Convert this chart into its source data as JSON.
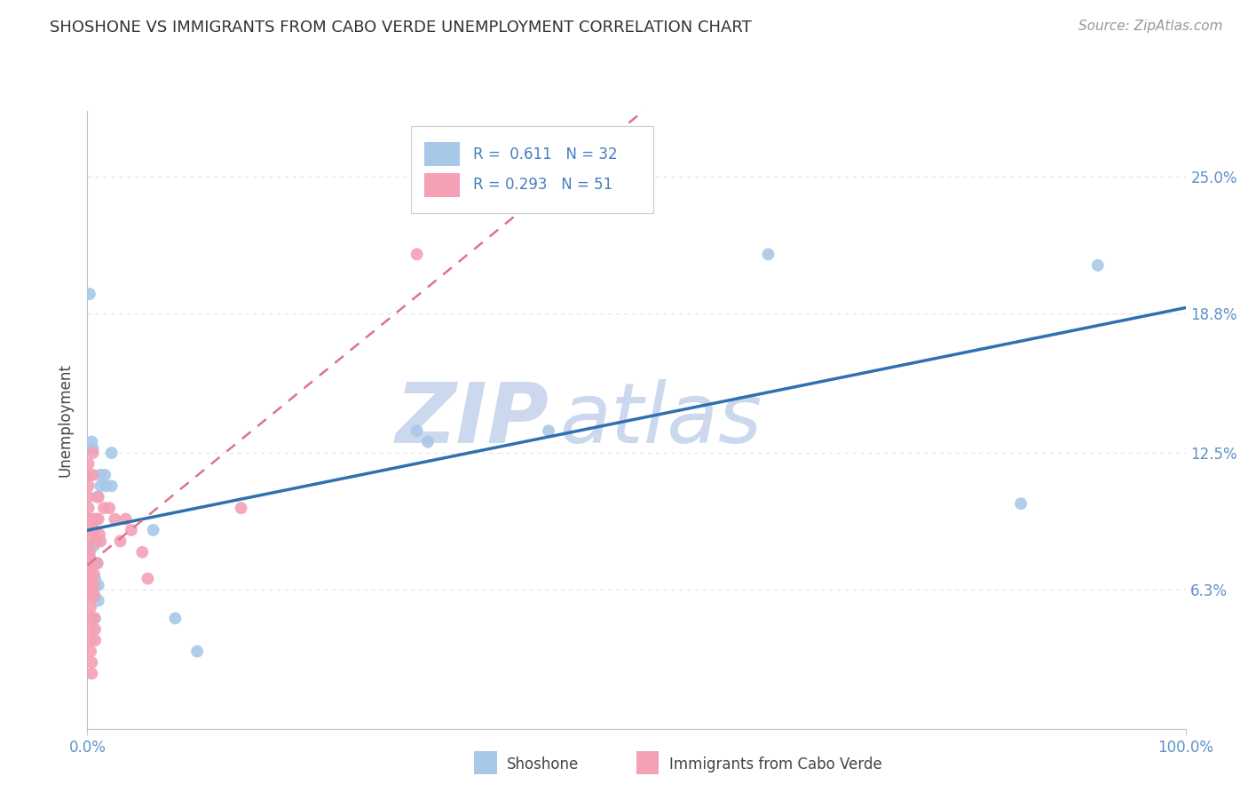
{
  "title": "SHOSHONE VS IMMIGRANTS FROM CABO VERDE UNEMPLOYMENT CORRELATION CHART",
  "source_text": "Source: ZipAtlas.com",
  "ylabel": "Unemployment",
  "x_min": 0.0,
  "x_max": 1.0,
  "y_min": 0.0,
  "y_max": 0.28,
  "y_ticks": [
    0.063,
    0.125,
    0.188,
    0.25
  ],
  "y_tick_labels": [
    "6.3%",
    "12.5%",
    "18.8%",
    "25.0%"
  ],
  "x_ticks": [
    0.0,
    1.0
  ],
  "x_tick_labels": [
    "0.0%",
    "100.0%"
  ],
  "shoshone_color": "#a8c8e8",
  "cabo_verde_color": "#f4a0b5",
  "shoshone_line_color": "#3070b0",
  "cabo_verde_line_color": "#e07090",
  "grid_color": "#d8e4f0",
  "background_color": "#ffffff",
  "watermark_color": "#ccd8ee",
  "legend_R1": "0.611",
  "legend_N1": "32",
  "legend_R2": "0.293",
  "legend_N2": "51",
  "shoshone_points": [
    [
      0.002,
      0.197
    ],
    [
      0.004,
      0.083
    ],
    [
      0.004,
      0.13
    ],
    [
      0.005,
      0.127
    ],
    [
      0.005,
      0.062
    ],
    [
      0.006,
      0.068
    ],
    [
      0.006,
      0.09
    ],
    [
      0.006,
      0.083
    ],
    [
      0.007,
      0.075
    ],
    [
      0.007,
      0.068
    ],
    [
      0.007,
      0.06
    ],
    [
      0.007,
      0.05
    ],
    [
      0.009,
      0.105
    ],
    [
      0.009,
      0.085
    ],
    [
      0.009,
      0.075
    ],
    [
      0.01,
      0.065
    ],
    [
      0.01,
      0.058
    ],
    [
      0.012,
      0.115
    ],
    [
      0.012,
      0.11
    ],
    [
      0.016,
      0.115
    ],
    [
      0.017,
      0.11
    ],
    [
      0.022,
      0.125
    ],
    [
      0.022,
      0.11
    ],
    [
      0.06,
      0.09
    ],
    [
      0.08,
      0.05
    ],
    [
      0.1,
      0.035
    ],
    [
      0.3,
      0.135
    ],
    [
      0.31,
      0.13
    ],
    [
      0.42,
      0.135
    ],
    [
      0.62,
      0.215
    ],
    [
      0.85,
      0.102
    ],
    [
      0.92,
      0.21
    ]
  ],
  "cabo_verde_points": [
    [
      0.001,
      0.12
    ],
    [
      0.001,
      0.115
    ],
    [
      0.001,
      0.11
    ],
    [
      0.001,
      0.105
    ],
    [
      0.001,
      0.1
    ],
    [
      0.001,
      0.095
    ],
    [
      0.002,
      0.09
    ],
    [
      0.002,
      0.085
    ],
    [
      0.002,
      0.08
    ],
    [
      0.002,
      0.078
    ],
    [
      0.002,
      0.075
    ],
    [
      0.002,
      0.072
    ],
    [
      0.002,
      0.07
    ],
    [
      0.002,
      0.067
    ],
    [
      0.002,
      0.065
    ],
    [
      0.003,
      0.062
    ],
    [
      0.003,
      0.06
    ],
    [
      0.003,
      0.055
    ],
    [
      0.003,
      0.05
    ],
    [
      0.003,
      0.045
    ],
    [
      0.003,
      0.04
    ],
    [
      0.003,
      0.035
    ],
    [
      0.004,
      0.03
    ],
    [
      0.004,
      0.025
    ],
    [
      0.005,
      0.125
    ],
    [
      0.005,
      0.115
    ],
    [
      0.005,
      0.095
    ],
    [
      0.006,
      0.09
    ],
    [
      0.006,
      0.07
    ],
    [
      0.006,
      0.065
    ],
    [
      0.006,
      0.06
    ],
    [
      0.006,
      0.05
    ],
    [
      0.007,
      0.045
    ],
    [
      0.007,
      0.04
    ],
    [
      0.008,
      0.095
    ],
    [
      0.008,
      0.085
    ],
    [
      0.009,
      0.075
    ],
    [
      0.01,
      0.105
    ],
    [
      0.01,
      0.095
    ],
    [
      0.011,
      0.088
    ],
    [
      0.012,
      0.085
    ],
    [
      0.015,
      0.1
    ],
    [
      0.02,
      0.1
    ],
    [
      0.025,
      0.095
    ],
    [
      0.03,
      0.085
    ],
    [
      0.035,
      0.095
    ],
    [
      0.04,
      0.09
    ],
    [
      0.05,
      0.08
    ],
    [
      0.055,
      0.068
    ],
    [
      0.14,
      0.1
    ],
    [
      0.3,
      0.215
    ]
  ]
}
